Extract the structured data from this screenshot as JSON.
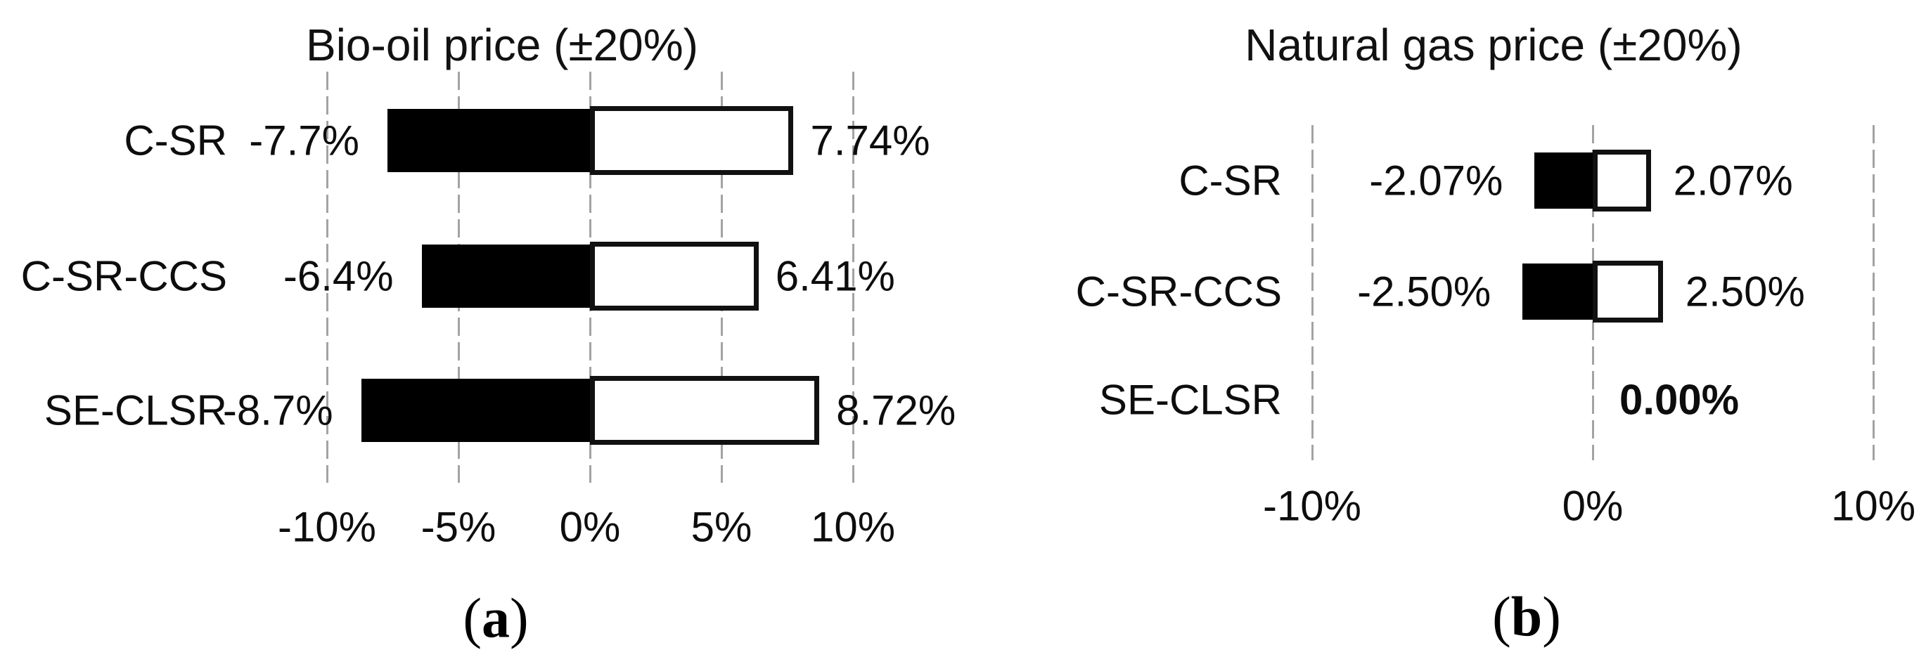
{
  "figure": {
    "background_color": "#ffffff",
    "text_color": "#0d0d0d",
    "gridline_color": "#a3a3a3",
    "decrease_bar_color": "#000000",
    "increase_bar_color": "#ffffff",
    "increase_bar_border_color": "#111111"
  },
  "chart_data": [
    {
      "type": "bar",
      "orientation": "horizontal",
      "title": "Bio-oil price (±20%)",
      "caption": {
        "prefix": "(",
        "letter": "a",
        "suffix": ")"
      },
      "categories": [
        "C-SR",
        "C-SR-CCS",
        "SE-CLSR"
      ],
      "series": [
        {
          "name": "decrease",
          "color": "#000000",
          "values": [
            -7.7,
            -6.4,
            -8.7
          ],
          "labels": [
            "-7.7%",
            "-6.4%",
            "-8.7%"
          ]
        },
        {
          "name": "increase",
          "color": "#ffffff",
          "values": [
            7.74,
            6.41,
            8.72
          ],
          "labels": [
            "7.74%",
            "6.41%",
            "8.72%"
          ]
        }
      ],
      "xlim": [
        -10,
        10
      ],
      "ticks": [
        {
          "label": "-10%",
          "value": -10
        },
        {
          "label": "-5%",
          "value": -5
        },
        {
          "label": "0%",
          "value": 0
        },
        {
          "label": "5%",
          "value": 5
        },
        {
          "label": "10%",
          "value": 10
        }
      ],
      "grid": true,
      "legend": false,
      "zero_label": ""
    },
    {
      "type": "bar",
      "orientation": "horizontal",
      "title": "Natural gas price (±20%)",
      "caption": {
        "prefix": "(",
        "letter": "b",
        "suffix": ")"
      },
      "categories": [
        "C-SR",
        "C-SR-CCS",
        "SE-CLSR"
      ],
      "series": [
        {
          "name": "decrease",
          "color": "#000000",
          "values": [
            -2.07,
            -2.5,
            0
          ],
          "labels": [
            "-2.07%",
            "-2.50%",
            ""
          ]
        },
        {
          "name": "increase",
          "color": "#ffffff",
          "values": [
            2.07,
            2.5,
            0
          ],
          "labels": [
            "2.07%",
            "2.50%",
            ""
          ]
        }
      ],
      "xlim": [
        -10,
        10
      ],
      "ticks": [
        {
          "label": "-10%",
          "value": -10
        },
        {
          "label": "0%",
          "value": 0
        },
        {
          "label": "10%",
          "value": 10
        }
      ],
      "grid": true,
      "legend": false,
      "zero_label": "0.00%"
    }
  ]
}
